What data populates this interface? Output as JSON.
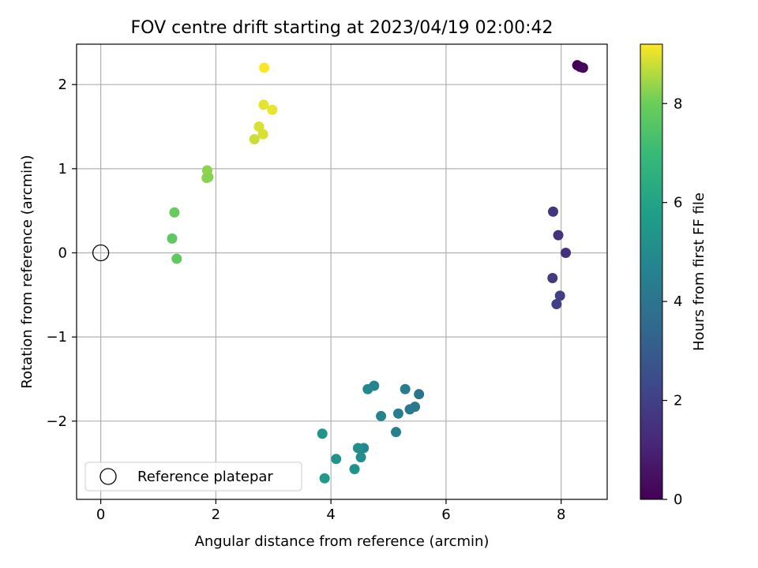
{
  "chart_data": {
    "type": "scatter",
    "title": "FOV centre drift starting at 2023/04/19 02:00:42",
    "xlabel": "Angular distance from reference (arcmin)",
    "ylabel": "Rotation from reference (arcmin)",
    "xlim": [
      -0.42,
      8.8
    ],
    "ylim": [
      -2.93,
      2.48
    ],
    "xticks": [
      0,
      2,
      4,
      6,
      8
    ],
    "xtick_labels": [
      "0",
      "2",
      "4",
      "6",
      "8"
    ],
    "yticks": [
      -2,
      -1,
      0,
      1,
      2
    ],
    "ytick_labels": [
      "−2",
      "−1",
      "0",
      "1",
      "2"
    ],
    "grid": true,
    "colorbar": {
      "label": "Hours from first FF file",
      "range": [
        0,
        9.2
      ],
      "ticks": [
        0,
        2,
        4,
        6,
        8
      ],
      "tick_labels": [
        "0",
        "2",
        "4",
        "6",
        "8"
      ],
      "colormap": "viridis"
    },
    "legend": {
      "placement": "lower-left",
      "entries": [
        {
          "label": "Reference platepar",
          "marker": "open-circle"
        }
      ]
    },
    "reference_point": {
      "x": 0,
      "y": 0
    },
    "series": [
      {
        "points": [
          {
            "x": 8.28,
            "y": 2.23,
            "c": 0.0
          },
          {
            "x": 8.33,
            "y": 2.21,
            "c": 0.1
          },
          {
            "x": 8.38,
            "y": 2.2,
            "c": 0.2
          },
          {
            "x": 8.08,
            "y": 0.0,
            "c": 1.4
          },
          {
            "x": 7.95,
            "y": 0.21,
            "c": 1.5
          },
          {
            "x": 7.86,
            "y": 0.49,
            "c": 1.6
          },
          {
            "x": 7.85,
            "y": -0.3,
            "c": 1.8
          },
          {
            "x": 7.98,
            "y": -0.51,
            "c": 1.9
          },
          {
            "x": 7.92,
            "y": -0.61,
            "c": 2.0
          },
          {
            "x": 5.53,
            "y": -1.68,
            "c": 4.0
          },
          {
            "x": 5.46,
            "y": -1.83,
            "c": 4.1
          },
          {
            "x": 5.37,
            "y": -1.86,
            "c": 4.2
          },
          {
            "x": 5.29,
            "y": -1.62,
            "c": 4.3
          },
          {
            "x": 5.17,
            "y": -1.91,
            "c": 4.4
          },
          {
            "x": 5.13,
            "y": -2.13,
            "c": 4.5
          },
          {
            "x": 4.87,
            "y": -1.94,
            "c": 4.6
          },
          {
            "x": 4.75,
            "y": -1.58,
            "c": 4.7
          },
          {
            "x": 4.64,
            "y": -1.62,
            "c": 4.8
          },
          {
            "x": 4.57,
            "y": -2.32,
            "c": 4.9
          },
          {
            "x": 4.52,
            "y": -2.43,
            "c": 5.0
          },
          {
            "x": 4.47,
            "y": -2.32,
            "c": 5.1
          },
          {
            "x": 4.41,
            "y": -2.57,
            "c": 5.2
          },
          {
            "x": 4.09,
            "y": -2.45,
            "c": 5.3
          },
          {
            "x": 3.85,
            "y": -2.15,
            "c": 5.4
          },
          {
            "x": 3.89,
            "y": -2.68,
            "c": 5.5
          },
          {
            "x": 1.24,
            "y": 0.17,
            "c": 7.7
          },
          {
            "x": 1.32,
            "y": -0.07,
            "c": 7.8
          },
          {
            "x": 1.28,
            "y": 0.48,
            "c": 7.9
          },
          {
            "x": 1.87,
            "y": 0.9,
            "c": 8.2
          },
          {
            "x": 1.84,
            "y": 0.89,
            "c": 8.25
          },
          {
            "x": 1.85,
            "y": 0.98,
            "c": 8.3
          },
          {
            "x": 2.67,
            "y": 1.35,
            "c": 8.8
          },
          {
            "x": 2.82,
            "y": 1.41,
            "c": 8.9
          },
          {
            "x": 2.75,
            "y": 1.5,
            "c": 8.9
          },
          {
            "x": 2.83,
            "y": 1.76,
            "c": 9.0
          },
          {
            "x": 2.98,
            "y": 1.7,
            "c": 9.05
          },
          {
            "x": 2.84,
            "y": 2.2,
            "c": 9.2
          }
        ]
      }
    ]
  }
}
